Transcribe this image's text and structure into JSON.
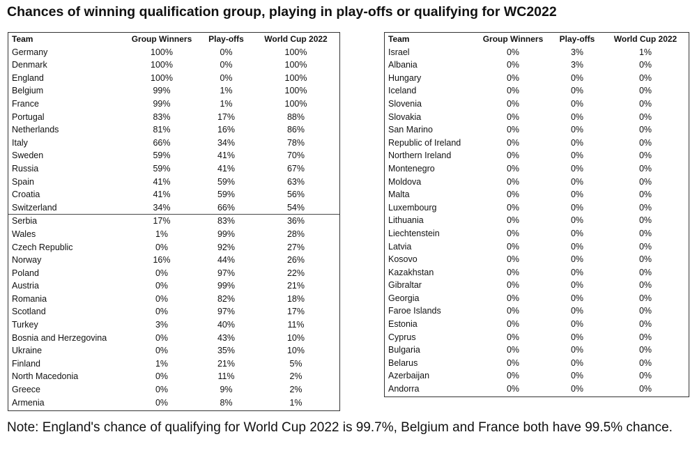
{
  "title": "Chances of winning qualification group, playing in play-offs or qualifying for WC2022",
  "columns": [
    "Team",
    "Group Winners",
    "Play-offs",
    "World Cup 2022"
  ],
  "left_table": [
    [
      "Germany",
      "100%",
      "0%",
      "100%"
    ],
    [
      "Denmark",
      "100%",
      "0%",
      "100%"
    ],
    [
      "England",
      "100%",
      "0%",
      "100%"
    ],
    [
      "Belgium",
      "99%",
      "1%",
      "100%"
    ],
    [
      "France",
      "99%",
      "1%",
      "100%"
    ],
    [
      "Portugal",
      "83%",
      "17%",
      "88%"
    ],
    [
      "Netherlands",
      "81%",
      "16%",
      "86%"
    ],
    [
      "Italy",
      "66%",
      "34%",
      "78%"
    ],
    [
      "Sweden",
      "59%",
      "41%",
      "70%"
    ],
    [
      "Russia",
      "59%",
      "41%",
      "67%"
    ],
    [
      "Spain",
      "41%",
      "59%",
      "63%"
    ],
    [
      "Croatia",
      "41%",
      "59%",
      "56%"
    ],
    [
      "Switzerland",
      "34%",
      "66%",
      "54%"
    ],
    [
      "Serbia",
      "17%",
      "83%",
      "36%"
    ],
    [
      "Wales",
      "1%",
      "99%",
      "28%"
    ],
    [
      "Czech Republic",
      "0%",
      "92%",
      "27%"
    ],
    [
      "Norway",
      "16%",
      "44%",
      "26%"
    ],
    [
      "Poland",
      "0%",
      "97%",
      "22%"
    ],
    [
      "Austria",
      "0%",
      "99%",
      "21%"
    ],
    [
      "Romania",
      "0%",
      "82%",
      "18%"
    ],
    [
      "Scotland",
      "0%",
      "97%",
      "17%"
    ],
    [
      "Turkey",
      "3%",
      "40%",
      "11%"
    ],
    [
      "Bosnia and Herzegovina",
      "0%",
      "43%",
      "10%"
    ],
    [
      "Ukraine",
      "0%",
      "35%",
      "10%"
    ],
    [
      "Finland",
      "1%",
      "21%",
      "5%"
    ],
    [
      "North Macedonia",
      "0%",
      "11%",
      "2%"
    ],
    [
      "Greece",
      "0%",
      "9%",
      "2%"
    ],
    [
      "Armenia",
      "0%",
      "8%",
      "1%"
    ]
  ],
  "right_table": [
    [
      "Israel",
      "0%",
      "3%",
      "1%"
    ],
    [
      "Albania",
      "0%",
      "3%",
      "0%"
    ],
    [
      "Hungary",
      "0%",
      "0%",
      "0%"
    ],
    [
      "Iceland",
      "0%",
      "0%",
      "0%"
    ],
    [
      "Slovenia",
      "0%",
      "0%",
      "0%"
    ],
    [
      "Slovakia",
      "0%",
      "0%",
      "0%"
    ],
    [
      "San Marino",
      "0%",
      "0%",
      "0%"
    ],
    [
      "Republic of Ireland",
      "0%",
      "0%",
      "0%"
    ],
    [
      "Northern Ireland",
      "0%",
      "0%",
      "0%"
    ],
    [
      "Montenegro",
      "0%",
      "0%",
      "0%"
    ],
    [
      "Moldova",
      "0%",
      "0%",
      "0%"
    ],
    [
      "Malta",
      "0%",
      "0%",
      "0%"
    ],
    [
      "Luxembourg",
      "0%",
      "0%",
      "0%"
    ],
    [
      "Lithuania",
      "0%",
      "0%",
      "0%"
    ],
    [
      "Liechtenstein",
      "0%",
      "0%",
      "0%"
    ],
    [
      "Latvia",
      "0%",
      "0%",
      "0%"
    ],
    [
      "Kosovo",
      "0%",
      "0%",
      "0%"
    ],
    [
      "Kazakhstan",
      "0%",
      "0%",
      "0%"
    ],
    [
      "Gibraltar",
      "0%",
      "0%",
      "0%"
    ],
    [
      "Georgia",
      "0%",
      "0%",
      "0%"
    ],
    [
      "Faroe Islands",
      "0%",
      "0%",
      "0%"
    ],
    [
      "Estonia",
      "0%",
      "0%",
      "0%"
    ],
    [
      "Cyprus",
      "0%",
      "0%",
      "0%"
    ],
    [
      "Bulgaria",
      "0%",
      "0%",
      "0%"
    ],
    [
      "Belarus",
      "0%",
      "0%",
      "0%"
    ],
    [
      "Azerbaijan",
      "0%",
      "0%",
      "0%"
    ],
    [
      "Andorra",
      "0%",
      "0%",
      "0%"
    ]
  ],
  "note": "Note: England's chance of qualifying for World Cup 2022 is 99.7%, Belgium and France both have 99.5% chance."
}
